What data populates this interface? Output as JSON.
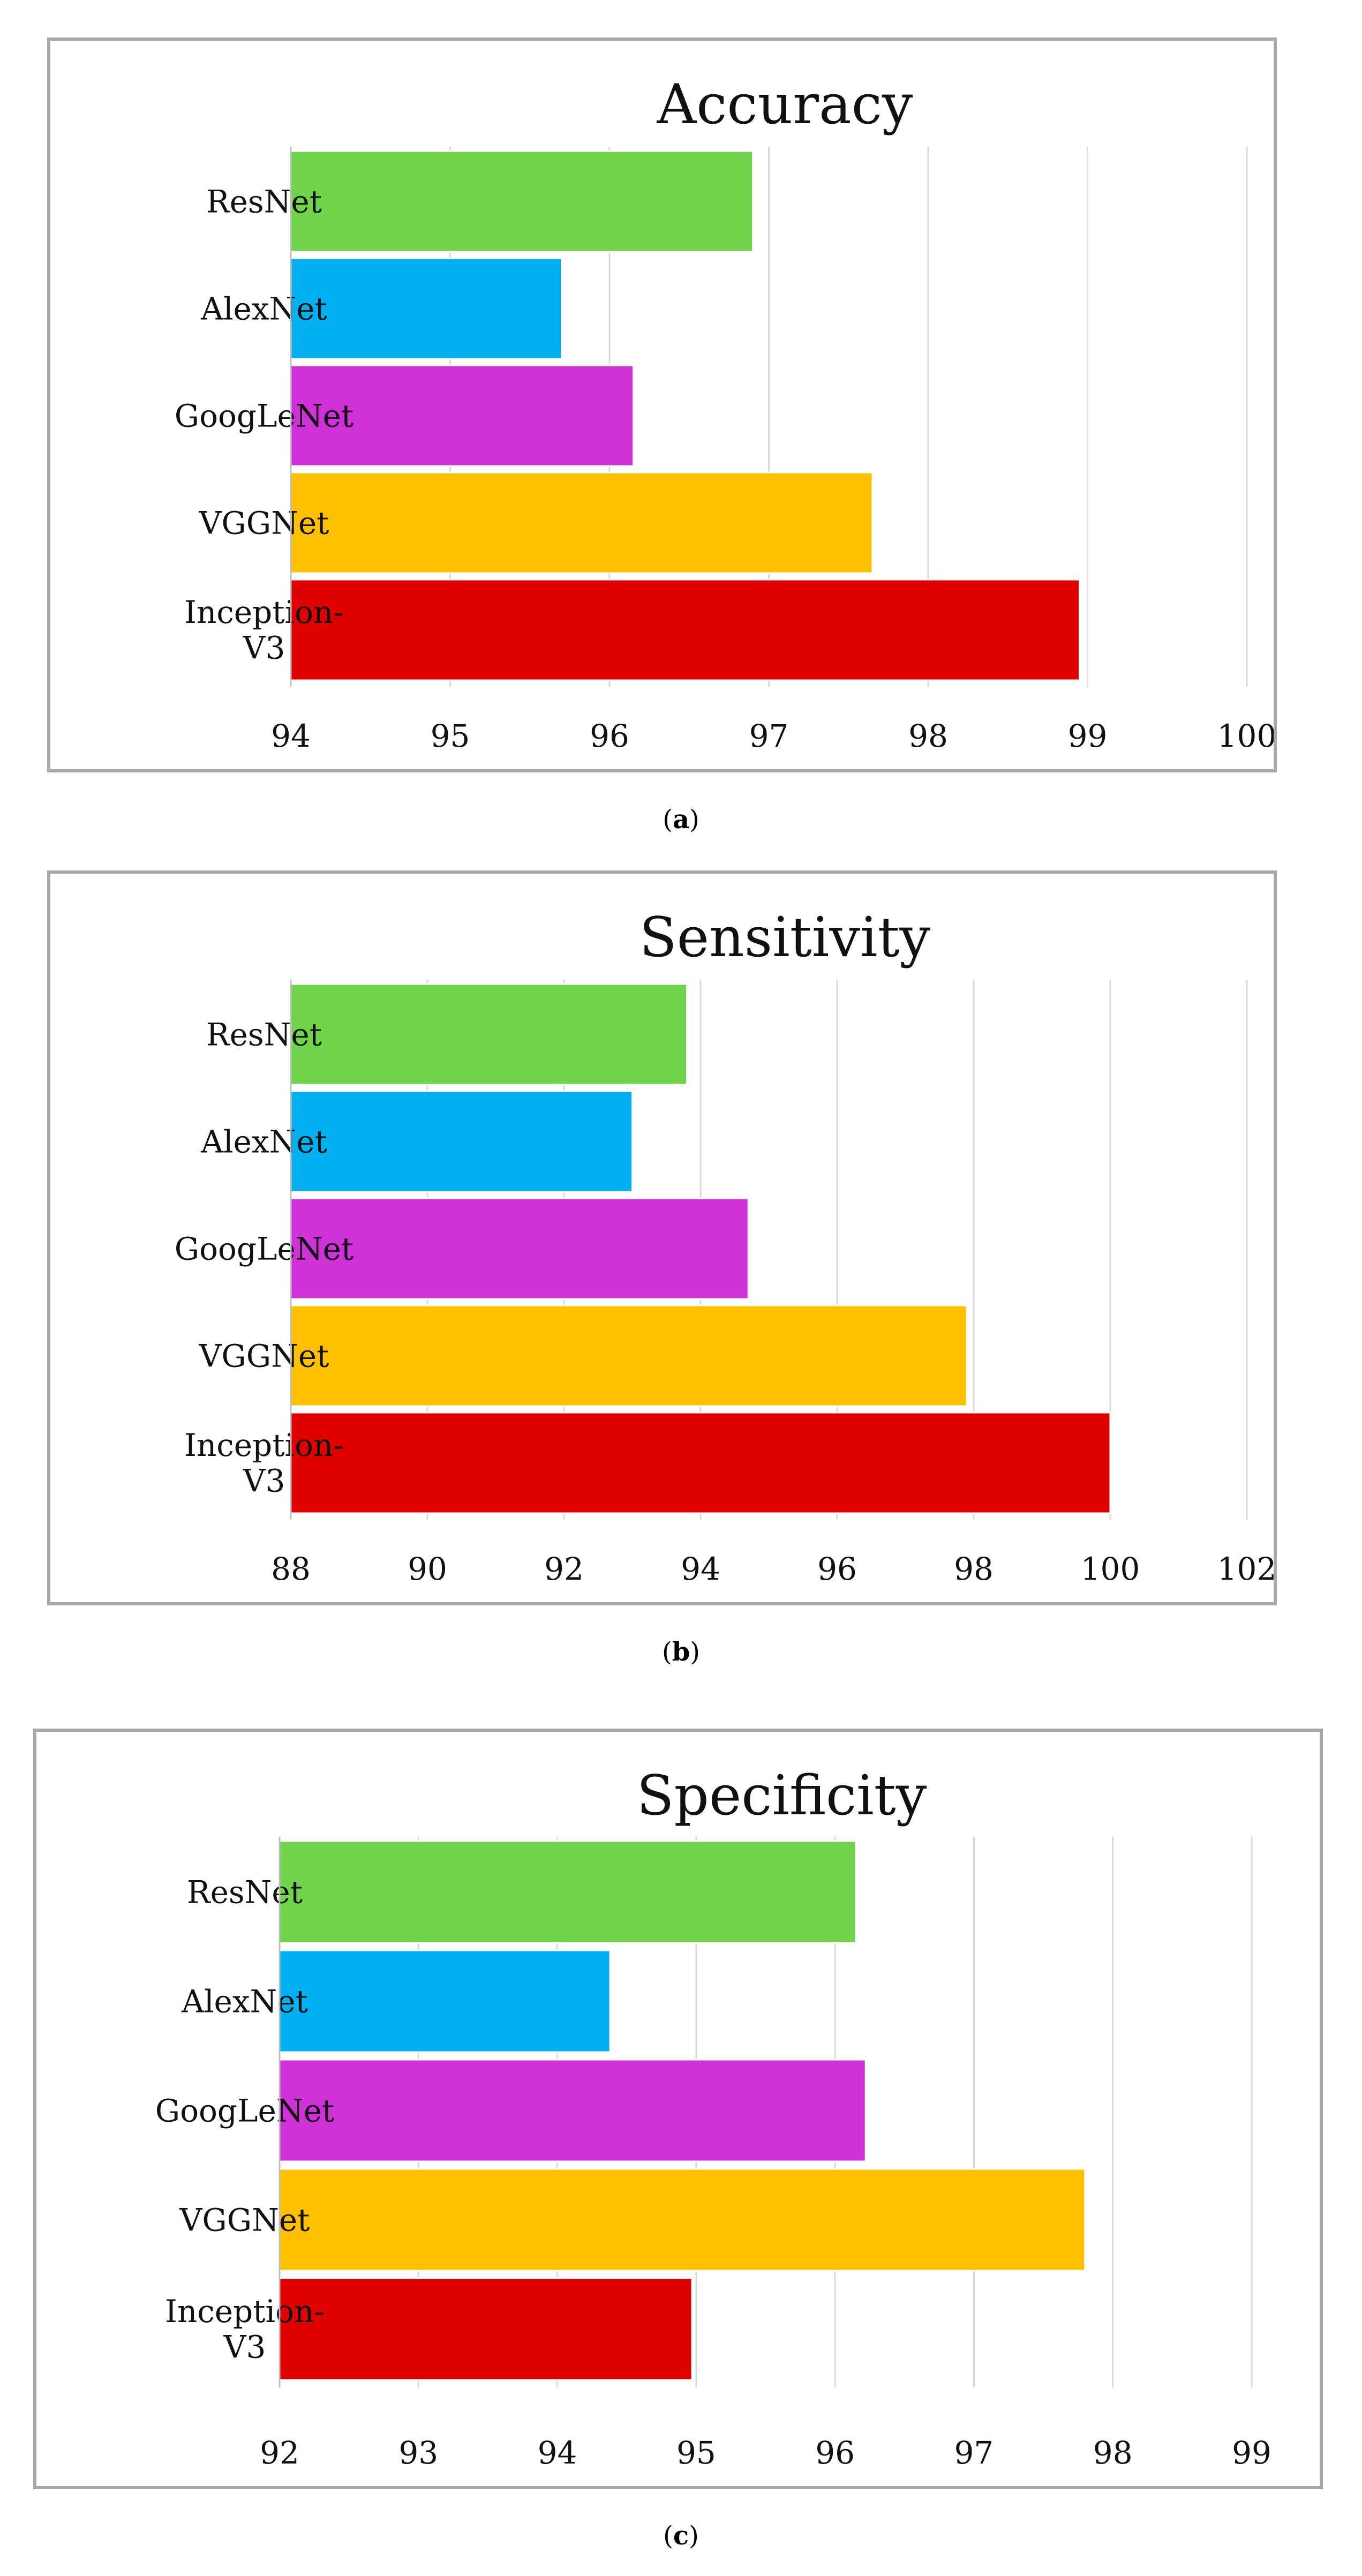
{
  "charts": [
    {
      "caption_letter": "a",
      "chart_data": {
        "type": "bar",
        "orientation": "horizontal",
        "title": "Accuracy",
        "categories": [
          "ResNet",
          "AlexNet",
          "GoogLeNet",
          "VGGNet",
          "Inception-V3"
        ],
        "category_lines": [
          [
            "ResNet"
          ],
          [
            "AlexNet"
          ],
          [
            "GoogLeNet"
          ],
          [
            "VGGNet"
          ],
          [
            "Inception-",
            "V3"
          ]
        ],
        "values": [
          96.9,
          95.7,
          96.15,
          97.65,
          98.95
        ],
        "colors": [
          "#70d44a",
          "#00b0f0",
          "#d030d8",
          "#ffc000",
          "#e00000"
        ],
        "xlim": [
          94,
          100
        ],
        "xticks": [
          94,
          95,
          96,
          97,
          98,
          99,
          100
        ],
        "grid": true,
        "legend": "none"
      }
    },
    {
      "caption_letter": "b",
      "chart_data": {
        "type": "bar",
        "orientation": "horizontal",
        "title": "Sensitivity",
        "categories": [
          "ResNet",
          "AlexNet",
          "GoogLeNet",
          "VGGNet",
          "Inception-V3"
        ],
        "category_lines": [
          [
            "ResNet"
          ],
          [
            "AlexNet"
          ],
          [
            "GoogLeNet"
          ],
          [
            "VGGNet"
          ],
          [
            "Inception-",
            "V3"
          ]
        ],
        "values": [
          93.8,
          93.0,
          94.7,
          97.9,
          100
        ],
        "colors": [
          "#70d44a",
          "#00b0f0",
          "#d030d8",
          "#ffc000",
          "#e00000"
        ],
        "xlim": [
          88,
          102
        ],
        "xticks": [
          88,
          90,
          92,
          94,
          96,
          98,
          100,
          102
        ],
        "grid": true,
        "legend": "none"
      }
    },
    {
      "caption_letter": "c",
      "chart_data": {
        "type": "bar",
        "orientation": "horizontal",
        "title": "Specificity",
        "categories": [
          "ResNet",
          "AlexNet",
          "GoogLeNet",
          "VGGNet",
          "Inception-V3"
        ],
        "category_lines": [
          [
            "ResNet"
          ],
          [
            "AlexNet"
          ],
          [
            "GoogLeNet"
          ],
          [
            "VGGNet"
          ],
          [
            "Inception-",
            "V3"
          ]
        ],
        "values": [
          96.15,
          94.38,
          96.22,
          97.8,
          94.97
        ],
        "colors": [
          "#70d44a",
          "#00b0f0",
          "#d030d8",
          "#ffc000",
          "#e00000"
        ],
        "xlim": [
          92,
          99
        ],
        "xticks": [
          92,
          93,
          94,
          95,
          96,
          97,
          98,
          99
        ],
        "grid": true,
        "legend": "none"
      }
    }
  ]
}
